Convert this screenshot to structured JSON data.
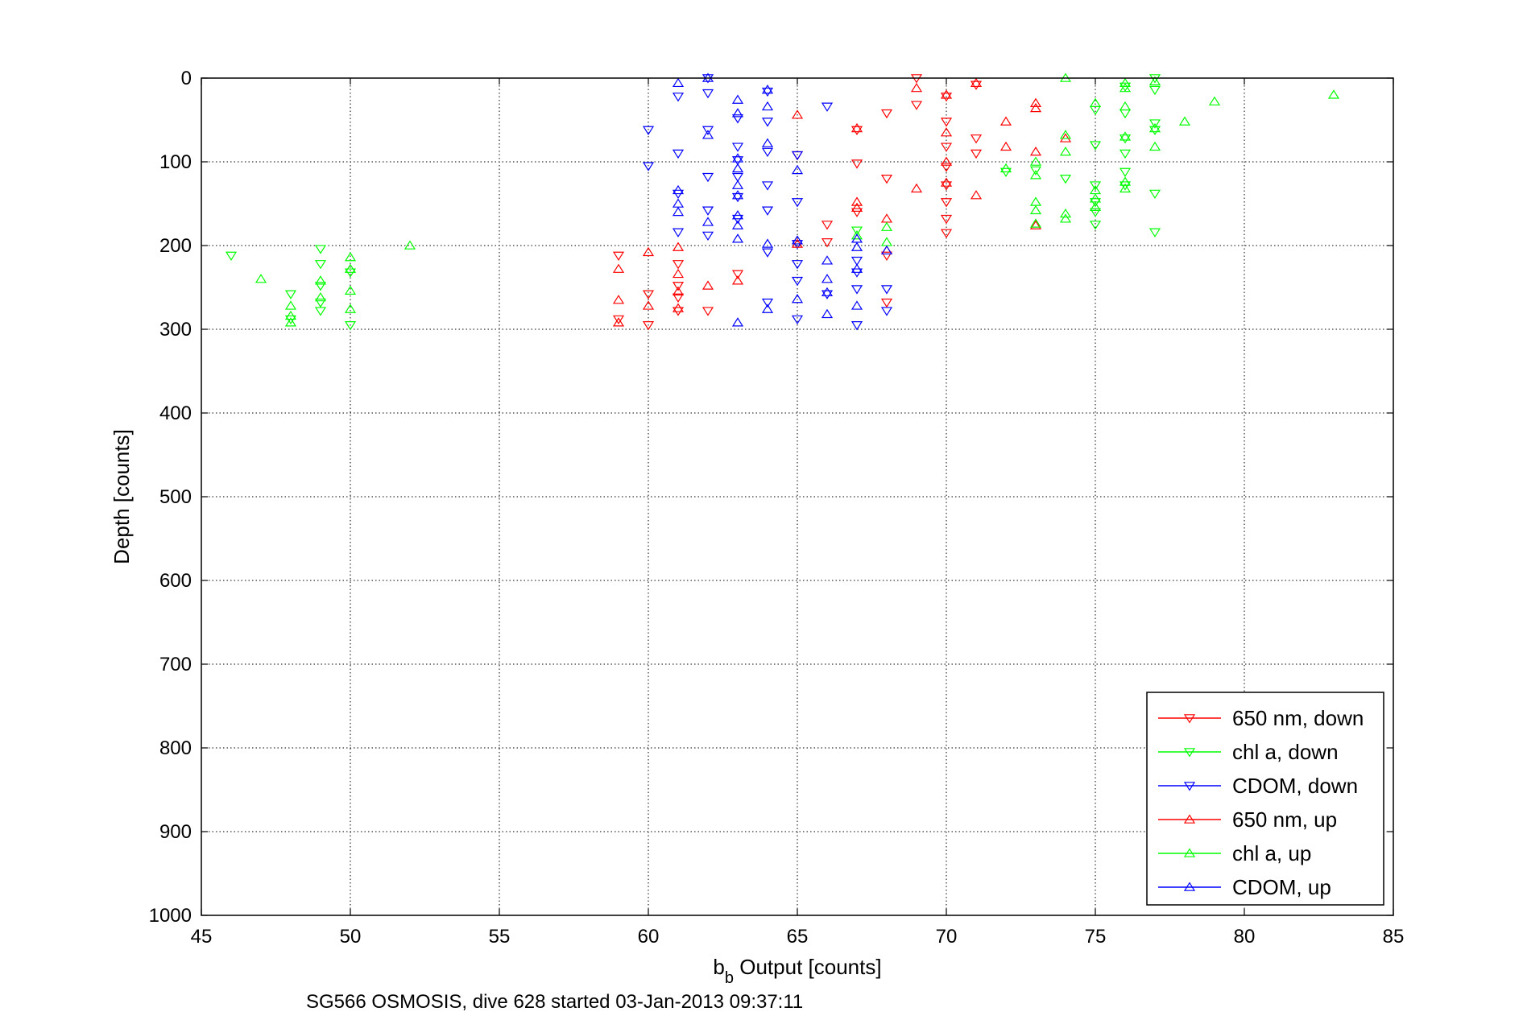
{
  "chart_data": {
    "type": "scatter",
    "title": "",
    "xlabel_main": "b",
    "xlabel_sub": "b",
    "xlabel_rest": " Output [counts]",
    "ylabel": "Depth [counts]",
    "caption": "SG566 OSMOSIS, dive 628 started 03-Jan-2013 09:37:11",
    "xlim": [
      45,
      85
    ],
    "ylim": [
      0,
      1000
    ],
    "y_reversed": true,
    "grid": true,
    "legend_position": "bottom-right",
    "xticks": [
      "45",
      "50",
      "55",
      "60",
      "65",
      "70",
      "75",
      "80",
      "85"
    ],
    "yticks": [
      "0",
      "100",
      "200",
      "300",
      "400",
      "500",
      "600",
      "700",
      "800",
      "900",
      "1000"
    ],
    "colors": {
      "red": "#ff0000",
      "green": "#00ff00",
      "blue": "#0000ff"
    },
    "series": [
      {
        "name": "650 nm, down",
        "color": "#ff0000",
        "marker": "triangle-down",
        "points": [
          [
            59,
            212
          ],
          [
            59,
            288
          ],
          [
            60,
            258
          ],
          [
            60,
            295
          ],
          [
            61,
            222
          ],
          [
            61,
            248
          ],
          [
            61,
            262
          ],
          [
            61,
            278
          ],
          [
            62,
            278
          ],
          [
            63,
            234
          ],
          [
            67,
            62
          ],
          [
            67,
            102
          ],
          [
            67,
            160
          ],
          [
            68,
            42
          ],
          [
            68,
            120
          ],
          [
            68,
            212
          ],
          [
            68,
            268
          ],
          [
            69,
            0
          ],
          [
            69,
            32
          ],
          [
            70,
            22
          ],
          [
            70,
            52
          ],
          [
            70,
            82
          ],
          [
            70,
            106
          ],
          [
            70,
            128
          ],
          [
            70,
            148
          ],
          [
            70,
            168
          ],
          [
            70,
            185
          ],
          [
            71,
            8
          ],
          [
            71,
            72
          ],
          [
            71,
            90
          ],
          [
            65,
            92
          ],
          [
            66,
            175
          ],
          [
            66,
            196
          ]
        ]
      },
      {
        "name": "chl a, down",
        "color": "#00ff00",
        "marker": "triangle-down",
        "points": [
          [
            46,
            212
          ],
          [
            48,
            258
          ],
          [
            48,
            288
          ],
          [
            49,
            204
          ],
          [
            49,
            222
          ],
          [
            49,
            248
          ],
          [
            49,
            268
          ],
          [
            49,
            278
          ],
          [
            50,
            232
          ],
          [
            50,
            295
          ],
          [
            67,
            182
          ],
          [
            72,
            112
          ],
          [
            73,
            110
          ],
          [
            74,
            120
          ],
          [
            75,
            38
          ],
          [
            75,
            80
          ],
          [
            75,
            128
          ],
          [
            75,
            148
          ],
          [
            75,
            160
          ],
          [
            75,
            175
          ],
          [
            76,
            10
          ],
          [
            76,
            42
          ],
          [
            76,
            72
          ],
          [
            76,
            90
          ],
          [
            76,
            112
          ],
          [
            76,
            128
          ],
          [
            77,
            0
          ],
          [
            77,
            14
          ],
          [
            77,
            54
          ],
          [
            77,
            62
          ],
          [
            77,
            138
          ],
          [
            77,
            184
          ]
        ]
      },
      {
        "name": "CDOM, down",
        "color": "#0000ff",
        "marker": "triangle-down",
        "points": [
          [
            60,
            62
          ],
          [
            60,
            105
          ],
          [
            61,
            22
          ],
          [
            61,
            90
          ],
          [
            61,
            138
          ],
          [
            61,
            184
          ],
          [
            62,
            0
          ],
          [
            62,
            18
          ],
          [
            62,
            62
          ],
          [
            62,
            118
          ],
          [
            62,
            158
          ],
          [
            62,
            188
          ],
          [
            63,
            48
          ],
          [
            63,
            82
          ],
          [
            63,
            98
          ],
          [
            63,
            118
          ],
          [
            63,
            142
          ],
          [
            63,
            168
          ],
          [
            64,
            16
          ],
          [
            64,
            52
          ],
          [
            64,
            88
          ],
          [
            64,
            128
          ],
          [
            64,
            158
          ],
          [
            64,
            208
          ],
          [
            64,
            268
          ],
          [
            65,
            92
          ],
          [
            65,
            148
          ],
          [
            65,
            198
          ],
          [
            65,
            222
          ],
          [
            65,
            242
          ],
          [
            65,
            288
          ],
          [
            66,
            34
          ],
          [
            66,
            258
          ],
          [
            67,
            218
          ],
          [
            67,
            232
          ],
          [
            67,
            252
          ],
          [
            67,
            295
          ],
          [
            68,
            252
          ],
          [
            68,
            278
          ]
        ]
      },
      {
        "name": "650 nm, up",
        "color": "#ff0000",
        "marker": "triangle-up",
        "points": [
          [
            59,
            228
          ],
          [
            59,
            265
          ],
          [
            59,
            292
          ],
          [
            60,
            208
          ],
          [
            60,
            272
          ],
          [
            61,
            202
          ],
          [
            61,
            234
          ],
          [
            61,
            255
          ],
          [
            61,
            275
          ],
          [
            62,
            248
          ],
          [
            63,
            242
          ],
          [
            65,
            44
          ],
          [
            65,
            198
          ],
          [
            67,
            60
          ],
          [
            67,
            148
          ],
          [
            67,
            155
          ],
          [
            68,
            168
          ],
          [
            68,
            206
          ],
          [
            69,
            12
          ],
          [
            69,
            132
          ],
          [
            70,
            20
          ],
          [
            70,
            65
          ],
          [
            70,
            100
          ],
          [
            70,
            125
          ],
          [
            71,
            6
          ],
          [
            71,
            140
          ],
          [
            72,
            52
          ],
          [
            72,
            82
          ],
          [
            73,
            30
          ],
          [
            73,
            36
          ],
          [
            73,
            88
          ],
          [
            73,
            176
          ],
          [
            74,
            72
          ]
        ]
      },
      {
        "name": "chl a, up",
        "color": "#00ff00",
        "marker": "triangle-up",
        "points": [
          [
            47,
            240
          ],
          [
            48,
            272
          ],
          [
            48,
            284
          ],
          [
            48,
            292
          ],
          [
            49,
            242
          ],
          [
            49,
            262
          ],
          [
            50,
            214
          ],
          [
            50,
            228
          ],
          [
            50,
            254
          ],
          [
            50,
            276
          ],
          [
            52,
            200
          ],
          [
            67,
            188
          ],
          [
            68,
            178
          ],
          [
            68,
            196
          ],
          [
            72,
            108
          ],
          [
            73,
            100
          ],
          [
            73,
            116
          ],
          [
            73,
            148
          ],
          [
            73,
            158
          ],
          [
            73,
            174
          ],
          [
            74,
            0
          ],
          [
            74,
            68
          ],
          [
            74,
            88
          ],
          [
            74,
            162
          ],
          [
            74,
            168
          ],
          [
            75,
            30
          ],
          [
            75,
            134
          ],
          [
            75,
            144
          ],
          [
            75,
            154
          ],
          [
            76,
            6
          ],
          [
            76,
            12
          ],
          [
            76,
            34
          ],
          [
            76,
            70
          ],
          [
            76,
            124
          ],
          [
            76,
            132
          ],
          [
            77,
            4
          ],
          [
            77,
            60
          ],
          [
            77,
            82
          ],
          [
            78,
            52
          ],
          [
            79,
            28
          ],
          [
            83,
            20
          ]
        ]
      },
      {
        "name": "CDOM, up",
        "color": "#0000ff",
        "marker": "triangle-up",
        "points": [
          [
            61,
            6
          ],
          [
            61,
            134
          ],
          [
            61,
            150
          ],
          [
            61,
            160
          ],
          [
            62,
            0
          ],
          [
            62,
            68
          ],
          [
            62,
            172
          ],
          [
            63,
            26
          ],
          [
            63,
            42
          ],
          [
            63,
            96
          ],
          [
            63,
            108
          ],
          [
            63,
            128
          ],
          [
            63,
            140
          ],
          [
            63,
            164
          ],
          [
            63,
            176
          ],
          [
            63,
            192
          ],
          [
            63,
            292
          ],
          [
            64,
            14
          ],
          [
            64,
            34
          ],
          [
            64,
            78
          ],
          [
            64,
            198
          ],
          [
            64,
            276
          ],
          [
            65,
            110
          ],
          [
            65,
            194
          ],
          [
            65,
            264
          ],
          [
            66,
            218
          ],
          [
            66,
            240
          ],
          [
            66,
            256
          ],
          [
            66,
            282
          ],
          [
            67,
            192
          ],
          [
            67,
            202
          ],
          [
            67,
            228
          ],
          [
            67,
            272
          ],
          [
            68,
            206
          ]
        ]
      }
    ]
  }
}
